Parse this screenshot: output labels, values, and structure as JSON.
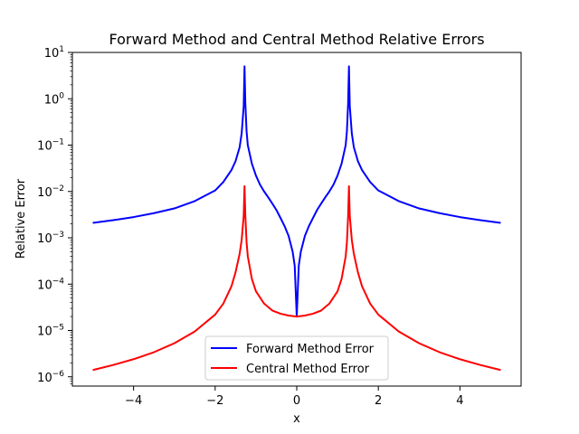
{
  "chart_data": {
    "type": "line",
    "title": "Forward Method and Central Method Relative Errors",
    "xlabel": "x",
    "ylabel": "Relative Error",
    "xlim": [
      -5.5,
      5.5
    ],
    "ylim_log10": [
      -6.2,
      1
    ],
    "yscale": "log",
    "x_ticks": [
      -4,
      -2,
      0,
      2,
      4
    ],
    "x_tick_labels": [
      "−4",
      "−2",
      "0",
      "2",
      "4"
    ],
    "y_ticks_exponents": [
      -6,
      -5,
      -4,
      -3,
      -2,
      -1,
      0,
      1
    ],
    "y_tick_base": "10",
    "y_tick_exponent_labels": [
      "−6",
      "−5",
      "−4",
      "−3",
      "−2",
      "−1",
      "0",
      "1"
    ],
    "grid": false,
    "legend_position": "lower center",
    "series": [
      {
        "name": "Forward Method Error",
        "color": "#0000ff",
        "x": [
          -5,
          -4.5,
          -4,
          -3.5,
          -3,
          -2.5,
          -2,
          -1.8,
          -1.6,
          -1.5,
          -1.4,
          -1.35,
          -1.3,
          -1.28,
          -1.26,
          -1.23,
          -1.2,
          -1.1,
          -1,
          -0.9,
          -0.8,
          -0.7,
          -0.6,
          -0.5,
          -0.4,
          -0.3,
          -0.2,
          -0.1,
          -0.05,
          0,
          0.05,
          0.1,
          0.2,
          0.3,
          0.4,
          0.5,
          0.6,
          0.7,
          0.8,
          0.9,
          1,
          1.1,
          1.2,
          1.23,
          1.26,
          1.28,
          1.3,
          1.35,
          1.4,
          1.5,
          1.6,
          1.8,
          2,
          2.5,
          3,
          3.5,
          4,
          4.5,
          5
        ],
        "y": [
          0.0021,
          0.0024,
          0.0028,
          0.0034,
          0.0043,
          0.0062,
          0.0105,
          0.016,
          0.029,
          0.045,
          0.09,
          0.18,
          0.7,
          5,
          0.8,
          0.2,
          0.1,
          0.04,
          0.022,
          0.014,
          0.01,
          0.0075,
          0.0055,
          0.004,
          0.0027,
          0.0018,
          0.0011,
          0.0005,
          0.00025,
          2e-05,
          0.00025,
          0.0005,
          0.0011,
          0.0018,
          0.0027,
          0.004,
          0.0055,
          0.0075,
          0.01,
          0.014,
          0.022,
          0.04,
          0.1,
          0.2,
          0.8,
          5,
          0.7,
          0.18,
          0.09,
          0.045,
          0.029,
          0.016,
          0.0105,
          0.0062,
          0.0043,
          0.0034,
          0.0028,
          0.0024,
          0.0021
        ]
      },
      {
        "name": "Central Method Error",
        "color": "#ff0000",
        "x": [
          -5,
          -4.5,
          -4,
          -3.5,
          -3,
          -2.5,
          -2,
          -1.8,
          -1.6,
          -1.5,
          -1.4,
          -1.35,
          -1.3,
          -1.28,
          -1.26,
          -1.23,
          -1.2,
          -1.1,
          -1,
          -0.8,
          -0.6,
          -0.4,
          -0.2,
          0,
          0.2,
          0.4,
          0.6,
          0.8,
          1,
          1.1,
          1.2,
          1.23,
          1.26,
          1.28,
          1.3,
          1.35,
          1.4,
          1.5,
          1.6,
          1.8,
          2,
          2.5,
          3,
          3.5,
          4,
          4.5,
          5
        ],
        "y": [
          1.4e-06,
          1.8e-06,
          2.4e-06,
          3.4e-06,
          5.3e-06,
          9.5e-06,
          2.2e-05,
          3.8e-05,
          9e-05,
          0.00018,
          0.00045,
          0.0009,
          0.003,
          0.013,
          0.003,
          0.0008,
          0.0004,
          0.00013,
          7e-05,
          3.8e-05,
          2.7e-05,
          2.3e-05,
          2.1e-05,
          2e-05,
          2.1e-05,
          2.3e-05,
          2.7e-05,
          3.8e-05,
          7e-05,
          0.00013,
          0.0004,
          0.0008,
          0.003,
          0.013,
          0.003,
          0.0009,
          0.00045,
          0.00018,
          9e-05,
          3.8e-05,
          2.2e-05,
          9.5e-06,
          5.3e-06,
          3.4e-06,
          2.4e-06,
          1.8e-06,
          1.4e-06
        ]
      }
    ]
  }
}
